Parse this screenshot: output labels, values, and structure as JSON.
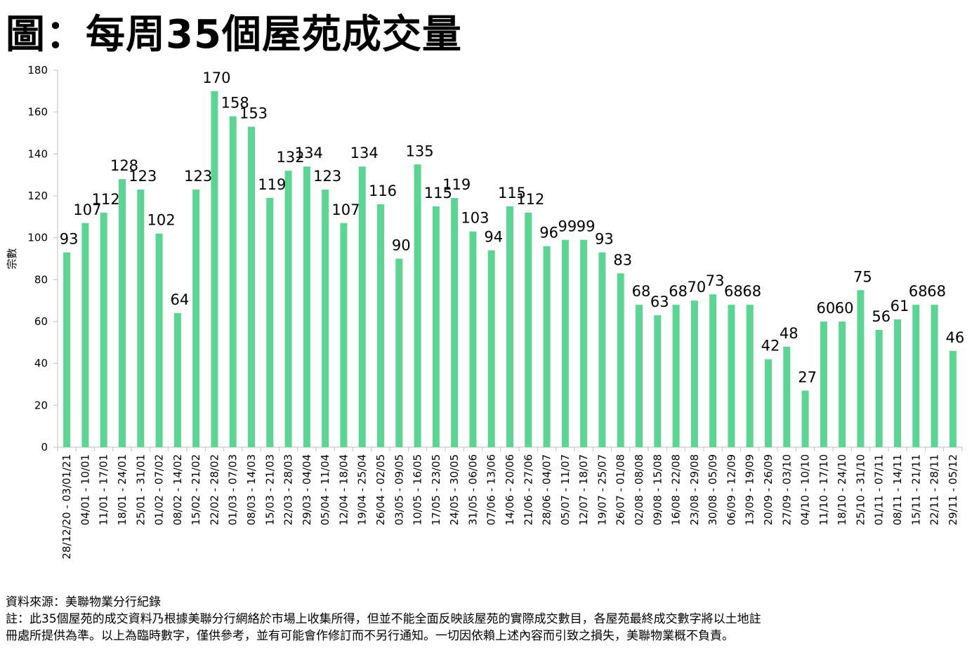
{
  "chart_data": {
    "type": "bar",
    "title": "圖：每周35個屋苑成交量",
    "ylabel": "宗數",
    "xlabel": "",
    "ylim": [
      0,
      180
    ],
    "yticks": [
      0,
      20,
      40,
      60,
      80,
      100,
      120,
      140,
      160,
      180
    ],
    "bar_color": "#5ad592",
    "axis_color": "#bfbfbf",
    "grid": false,
    "categories": [
      "28/12/20 - 03/01/21",
      "04/01 - 10/01",
      "11/01 - 17/01",
      "18/01 - 24/01",
      "25/01 - 31/01",
      "01/02 - 07/02",
      "08/02 - 14/02",
      "15/02 - 21/02",
      "22/02 - 28/02",
      "01/03 - 07/03",
      "08/03 - 14/03",
      "15/03 - 21/03",
      "22/03 - 28/03",
      "29/03 - 04/04",
      "05/04 - 11/04",
      "12/04 - 18/04",
      "19/04 - 25/04",
      "26/04 - 02/05",
      "03/05 - 09/05",
      "10/05 - 16/05",
      "17/05 - 23/05",
      "24/05 - 30/05",
      "31/05 - 06/06",
      "07/06 - 13/06",
      "14/06 - 20/06",
      "21/06 - 27/06",
      "28/06 - 04/07",
      "05/07 - 11/07",
      "12/07 - 18/07",
      "19/07 - 25/07",
      "26/07 - 01/08",
      "02/08 - 08/08",
      "09/08 - 15/08",
      "16/08 - 22/08",
      "23/08 - 29/08",
      "30/08 - 05/09",
      "06/09 - 12/09",
      "13/09 - 19/09",
      "20/09 - 26/09",
      "27/09 - 03/10",
      "04/10 - 10/10",
      "11/10 - 17/10",
      "18/10 - 24/10",
      "25/10 - 31/10",
      "01/11 - 07/11",
      "08/11 - 14/11",
      "15/11 - 21/11",
      "22/11 - 28/11",
      "29/11 - 05/12"
    ],
    "values": [
      93,
      107,
      112,
      128,
      123,
      102,
      64,
      123,
      170,
      158,
      153,
      119,
      132,
      134,
      123,
      107,
      134,
      116,
      90,
      135,
      115,
      119,
      103,
      94,
      115,
      112,
      96,
      99,
      99,
      93,
      83,
      68,
      63,
      68,
      70,
      73,
      68,
      68,
      42,
      48,
      27,
      60,
      60,
      75,
      56,
      61,
      68,
      68,
      46
    ]
  },
  "notes": {
    "source": "資料來源：美聯物業分行紀錄",
    "note_line1": "註：此35個屋苑的成交資料乃根據美聯分行網絡於市場上收集所得，但並不能全面反映該屋苑的實際成交數目，各屋苑最終成交數字將以土地註",
    "note_line2": "冊處所提供為準。以上為臨時數字，僅供參考，並有可能會作修訂而不另行通知。一切因依賴上述內容而引致之損失，美聯物業概不負責。"
  }
}
